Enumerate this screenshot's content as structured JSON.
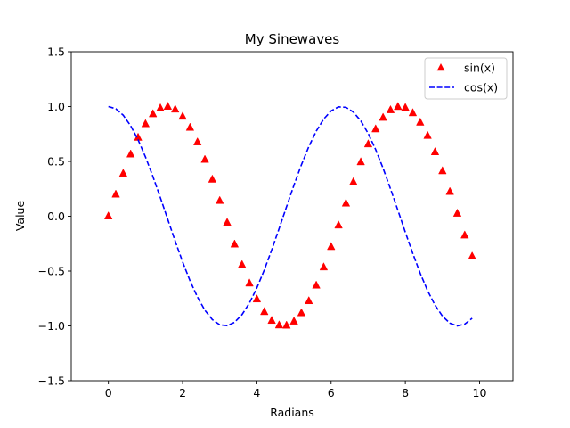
{
  "chart_data": {
    "type": "line",
    "title": "My Sinewaves",
    "xlabel": "Radians",
    "ylabel": "Value",
    "xlim": [
      -1.0,
      10.9
    ],
    "ylim": [
      -1.5,
      1.5
    ],
    "xticks": [
      0,
      2,
      4,
      6,
      8,
      10
    ],
    "xtick_labels": [
      "0",
      "2",
      "4",
      "6",
      "8",
      "10"
    ],
    "yticks": [
      -1.5,
      -1.0,
      -0.5,
      0.0,
      0.5,
      1.0,
      1.5
    ],
    "ytick_labels": [
      "−1.5",
      "−1.0",
      "−0.5",
      "0.0",
      "0.5",
      "1.0",
      "1.5"
    ],
    "grid": false,
    "legend_position": "top-right",
    "series": [
      {
        "name": "sin(x)",
        "style": "triangle-markers",
        "color": "#ff0000",
        "x": [
          0.0,
          0.2,
          0.4,
          0.6,
          0.8,
          1.0,
          1.2,
          1.4,
          1.6,
          1.8,
          2.0,
          2.2,
          2.4,
          2.6,
          2.8,
          3.0,
          3.2,
          3.4,
          3.6,
          3.8,
          4.0,
          4.2,
          4.4,
          4.6,
          4.8,
          5.0,
          5.2,
          5.4,
          5.6,
          5.8,
          6.0,
          6.2,
          6.4,
          6.6,
          6.8,
          7.0,
          7.2,
          7.4,
          7.6,
          7.8,
          8.0,
          8.2,
          8.4,
          8.6,
          8.8,
          9.0,
          9.2,
          9.4,
          9.6,
          9.8
        ],
        "y": [
          0.0,
          0.199,
          0.389,
          0.565,
          0.717,
          0.841,
          0.932,
          0.985,
          1.0,
          0.974,
          0.909,
          0.808,
          0.675,
          0.516,
          0.335,
          0.141,
          -0.058,
          -0.256,
          -0.443,
          -0.612,
          -0.757,
          -0.872,
          -0.952,
          -0.994,
          -0.996,
          -0.959,
          -0.883,
          -0.773,
          -0.631,
          -0.465,
          -0.279,
          -0.083,
          0.117,
          0.312,
          0.494,
          0.657,
          0.794,
          0.899,
          0.968,
          0.998,
          0.989,
          0.941,
          0.855,
          0.734,
          0.585,
          0.412,
          0.223,
          0.025,
          -0.174,
          -0.366
        ]
      },
      {
        "name": "cos(x)",
        "style": "dashed-line",
        "color": "#0000ff",
        "x": [
          0.0,
          0.2,
          0.4,
          0.6,
          0.8,
          1.0,
          1.2,
          1.4,
          1.6,
          1.8,
          2.0,
          2.2,
          2.4,
          2.6,
          2.8,
          3.0,
          3.2,
          3.4,
          3.6,
          3.8,
          4.0,
          4.2,
          4.4,
          4.6,
          4.8,
          5.0,
          5.2,
          5.4,
          5.6,
          5.8,
          6.0,
          6.2,
          6.4,
          6.6,
          6.8,
          7.0,
          7.2,
          7.4,
          7.6,
          7.8,
          8.0,
          8.2,
          8.4,
          8.6,
          8.8,
          9.0,
          9.2,
          9.4,
          9.6,
          9.8
        ],
        "y": [
          1.0,
          0.98,
          0.921,
          0.825,
          0.697,
          0.54,
          0.362,
          0.17,
          -0.029,
          -0.227,
          -0.416,
          -0.589,
          -0.737,
          -0.857,
          -0.942,
          -0.99,
          -0.998,
          -0.967,
          -0.897,
          -0.791,
          -0.654,
          -0.49,
          -0.307,
          -0.112,
          0.087,
          0.284,
          0.469,
          0.635,
          0.776,
          0.886,
          0.96,
          0.997,
          0.993,
          0.95,
          0.869,
          0.754,
          0.608,
          0.438,
          0.25,
          0.054,
          -0.146,
          -0.339,
          -0.519,
          -0.679,
          -0.811,
          -0.911,
          -0.975,
          -1.0,
          -0.984,
          -0.93
        ]
      }
    ]
  }
}
